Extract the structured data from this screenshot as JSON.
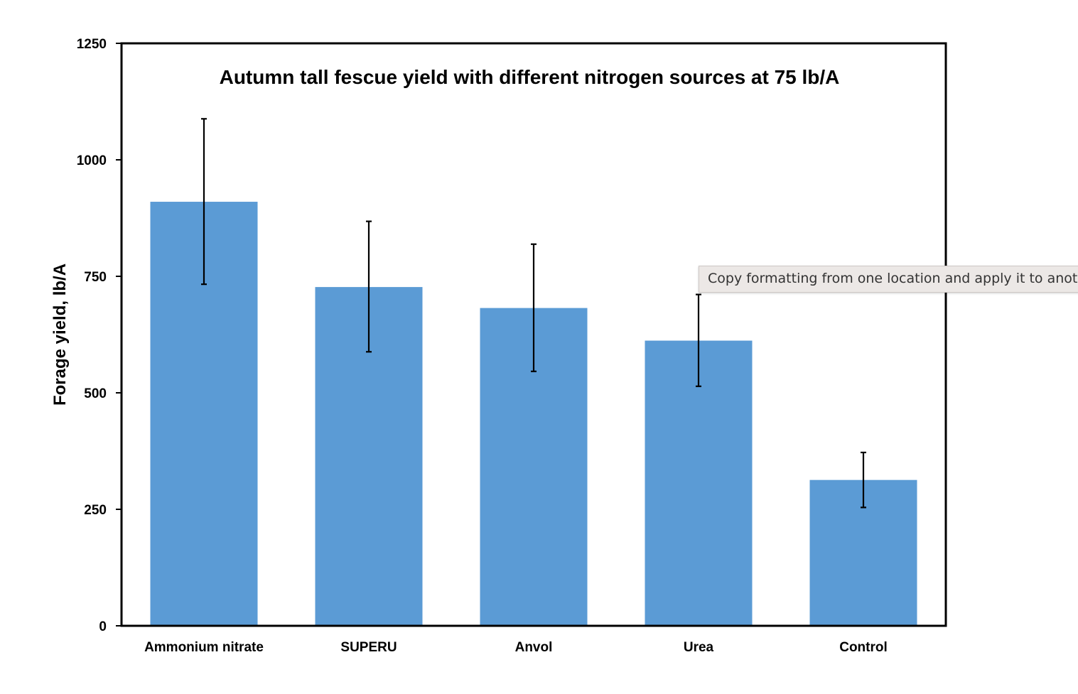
{
  "chart_data": {
    "type": "bar",
    "title": "Autumn tall fescue yield with different nitrogen sources at 75 lb/A",
    "xlabel": "",
    "ylabel": "Forage yield, lb/A",
    "categories": [
      "Ammonium nitrate",
      "SUPERU",
      "Anvol",
      "Urea",
      "Control"
    ],
    "values": [
      910,
      727,
      682,
      612,
      313
    ],
    "error_bars": [
      {
        "low": 733,
        "high": 1088
      },
      {
        "low": 588,
        "high": 868
      },
      {
        "low": 546,
        "high": 819
      },
      {
        "low": 514,
        "high": 711
      },
      {
        "low": 254,
        "high": 372
      }
    ],
    "ylim": [
      0,
      1250
    ],
    "yticks": [
      "0",
      "250",
      "500",
      "750",
      "1000",
      "1250"
    ],
    "ytick_values": [
      0,
      250,
      500,
      750,
      1000,
      1250
    ],
    "grid": false,
    "legend": "none",
    "colors": {
      "bar": "#5b9bd5",
      "error_bar": "#000000",
      "frame": "#000000",
      "text": "#000000"
    }
  },
  "tooltip": {
    "text": "Copy formatting from one location and apply it to another"
  }
}
